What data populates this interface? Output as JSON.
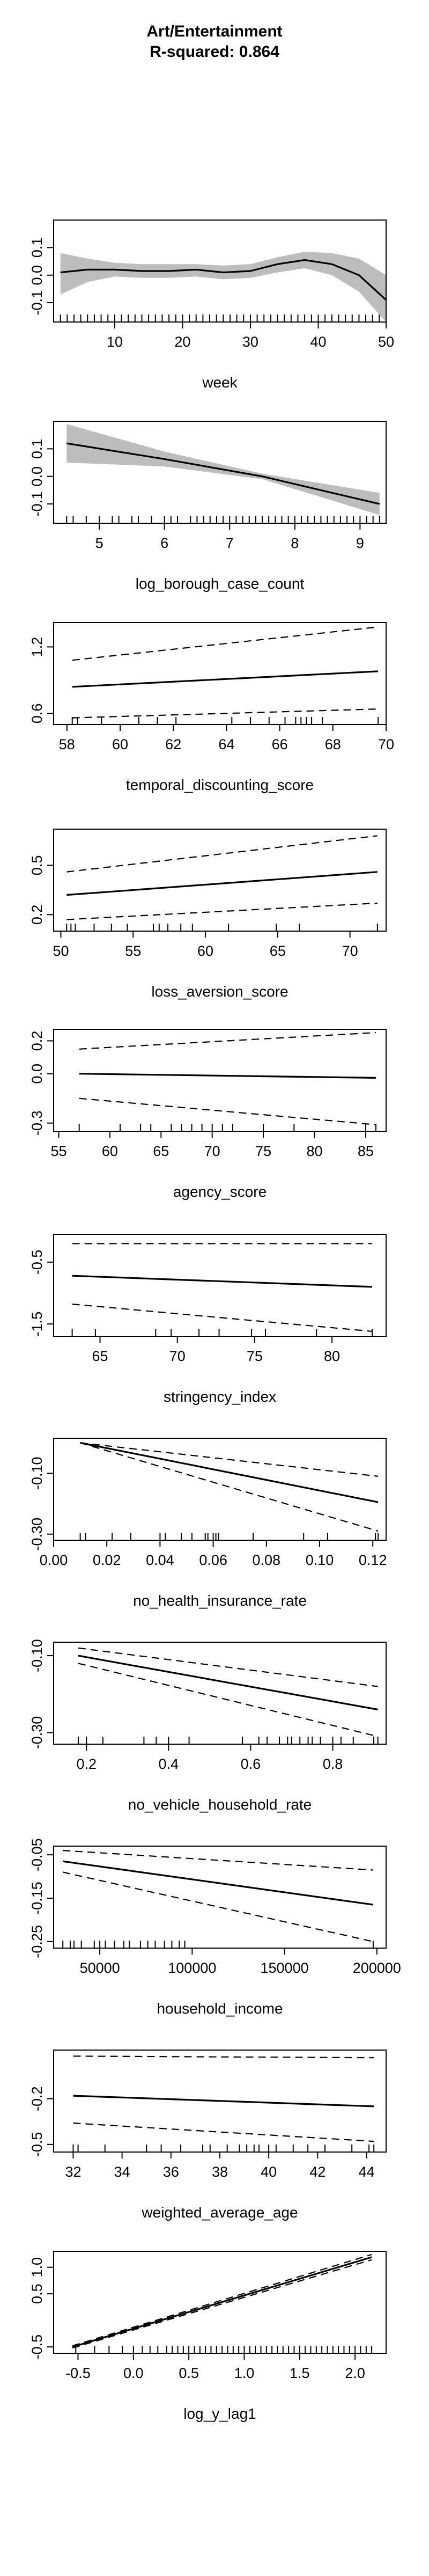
{
  "figure": {
    "title": "Art/Entertainment",
    "subtitle": "R-squared: 0.864"
  },
  "chart_data": [
    {
      "type": "line",
      "style": "smooth_band",
      "xlabel": "week",
      "xlim": [
        1,
        50
      ],
      "ylim": [
        -0.17,
        0.2
      ],
      "xticks": [
        10,
        20,
        30,
        40,
        50
      ],
      "xtick_labels": [
        "10",
        "20",
        "30",
        "40",
        "50"
      ],
      "yticks": [
        -0.1,
        0.0,
        0.1
      ],
      "ytick_labels": [
        "-0.1",
        "0.0",
        "0.1"
      ],
      "x": [
        2,
        6,
        10,
        14,
        18,
        22,
        26,
        30,
        34,
        38,
        42,
        46,
        50
      ],
      "fit": [
        0.01,
        0.02,
        0.02,
        0.015,
        0.015,
        0.02,
        0.01,
        0.015,
        0.04,
        0.055,
        0.04,
        0.0,
        -0.09
      ],
      "upper": [
        0.08,
        0.06,
        0.045,
        0.04,
        0.04,
        0.04,
        0.035,
        0.04,
        0.065,
        0.085,
        0.08,
        0.06,
        0.0
      ],
      "lower": [
        -0.07,
        -0.025,
        -0.005,
        -0.01,
        -0.01,
        -0.005,
        -0.015,
        -0.01,
        0.01,
        0.025,
        0.0,
        -0.06,
        -0.17
      ],
      "rug": [
        2,
        3,
        4,
        5,
        6,
        7,
        8,
        9,
        10,
        11,
        12,
        13,
        14,
        15,
        16,
        17,
        18,
        19,
        20,
        21,
        22,
        23,
        24,
        25,
        26,
        27,
        28,
        29,
        30,
        31,
        32,
        33,
        34,
        35,
        36,
        37,
        38,
        39,
        40,
        41,
        42,
        43,
        44,
        45,
        46,
        47,
        48,
        49,
        50
      ]
    },
    {
      "type": "line",
      "style": "smooth_band",
      "xlabel": "log_borough_case_count",
      "xlim": [
        4.3,
        9.4
      ],
      "ylim": [
        -0.17,
        0.2
      ],
      "xticks": [
        5,
        6,
        7,
        8,
        9
      ],
      "xtick_labels": [
        "5",
        "6",
        "7",
        "8",
        "9"
      ],
      "yticks": [
        -0.1,
        0.0,
        0.1
      ],
      "ytick_labels": [
        "-0.1",
        "0.0",
        "0.1"
      ],
      "x": [
        4.5,
        6.0,
        7.5,
        9.3
      ],
      "fit": [
        0.12,
        0.063,
        0.0,
        -0.1
      ],
      "upper": [
        0.19,
        0.09,
        0.01,
        -0.06
      ],
      "lower": [
        0.05,
        0.036,
        -0.01,
        -0.14
      ],
      "rug": [
        4.5,
        4.6,
        4.8,
        5.0,
        5.2,
        5.3,
        5.5,
        5.6,
        5.8,
        6.0,
        6.1,
        6.2,
        6.4,
        6.5,
        6.6,
        6.7,
        6.8,
        6.9,
        7.0,
        7.1,
        7.2,
        7.3,
        7.4,
        7.5,
        7.6,
        7.7,
        7.8,
        7.9,
        8.0,
        8.1,
        8.2,
        8.3,
        8.4,
        8.5,
        8.6,
        8.7,
        8.8,
        8.9,
        9.0,
        9.1,
        9.2,
        9.3
      ]
    },
    {
      "type": "line",
      "style": "dashed_ci",
      "xlabel": "temporal_discounting_score",
      "xlim": [
        57.5,
        70
      ],
      "ylim": [
        0.5,
        1.42
      ],
      "xticks": [
        58,
        60,
        62,
        64,
        66,
        68,
        70
      ],
      "xtick_labels": [
        "58",
        "60",
        "62",
        "64",
        "66",
        "68",
        "70"
      ],
      "yticks": [
        0.6,
        1.2
      ],
      "ytick_labels": [
        "0.6",
        "1.2"
      ],
      "x": [
        58.2,
        69.7
      ],
      "fit": [
        0.84,
        0.98
      ],
      "upper": [
        1.08,
        1.38
      ],
      "lower": [
        0.56,
        0.64
      ],
      "rug": [
        58.2,
        58.4,
        59.3,
        60.7,
        61.4,
        62.1,
        64.2,
        64.9,
        65.6,
        66.2,
        66.6,
        66.8,
        67.0,
        67.2,
        67.6,
        69.7
      ]
    },
    {
      "type": "line",
      "style": "dashed_ci",
      "xlabel": "loss_aversion_score",
      "xlim": [
        49.5,
        72.5
      ],
      "ylim": [
        0.1,
        0.72
      ],
      "xticks": [
        50,
        55,
        60,
        65,
        70
      ],
      "xtick_labels": [
        "50",
        "55",
        "60",
        "65",
        "70"
      ],
      "yticks": [
        0.2,
        0.5
      ],
      "ytick_labels": [
        "0.2",
        "0.5"
      ],
      "x": [
        50.4,
        71.9
      ],
      "fit": [
        0.32,
        0.46
      ],
      "upper": [
        0.46,
        0.68
      ],
      "lower": [
        0.17,
        0.27
      ],
      "rug": [
        50.4,
        50.7,
        51.0,
        52.3,
        53.5,
        54.6,
        56.4,
        56.8,
        57.4,
        58.3,
        59.1,
        61.6,
        64.9,
        66.5,
        71.9
      ]
    },
    {
      "type": "line",
      "style": "dashed_ci",
      "xlabel": "agency_score",
      "xlim": [
        54.5,
        87
      ],
      "ylim": [
        -0.35,
        0.27
      ],
      "xticks": [
        55,
        60,
        65,
        70,
        75,
        80,
        85
      ],
      "xtick_labels": [
        "55",
        "60",
        "65",
        "70",
        "75",
        "80",
        "85"
      ],
      "yticks": [
        -0.3,
        0.0,
        0.2
      ],
      "ytick_labels": [
        "-0.3",
        "0.0",
        "0.2"
      ],
      "x": [
        57,
        86
      ],
      "fit": [
        0.0,
        -0.025
      ],
      "upper": [
        0.15,
        0.25
      ],
      "lower": [
        -0.15,
        -0.31
      ],
      "rug": [
        57,
        61,
        63,
        64,
        66,
        67,
        68,
        69,
        70,
        71,
        72,
        75,
        78,
        85,
        86
      ]
    },
    {
      "type": "line",
      "style": "dashed_ci",
      "xlabel": "stringency_index",
      "xlim": [
        62,
        83.5
      ],
      "ylim": [
        -1.7,
        -0.05
      ],
      "xticks": [
        65,
        70,
        75,
        80
      ],
      "xtick_labels": [
        "65",
        "70",
        "75",
        "80"
      ],
      "yticks": [
        -1.5,
        -0.5
      ],
      "ytick_labels": [
        "-1.5",
        "-0.5"
      ],
      "x": [
        63.2,
        82.6
      ],
      "fit": [
        -0.72,
        -0.9
      ],
      "upper": [
        -0.2,
        -0.2
      ],
      "lower": [
        -1.18,
        -1.62
      ],
      "rug": [
        63.2,
        64.7,
        68.6,
        69.6,
        71.4,
        72.7,
        74.8,
        75.7,
        79.0,
        82.6
      ]
    },
    {
      "type": "line",
      "style": "dashed_ci",
      "xlabel": "no_health_insurance_rate",
      "xlim": [
        0.0,
        0.125
      ],
      "ylim": [
        -0.32,
        0.015
      ],
      "xticks": [
        0.0,
        0.02,
        0.04,
        0.06,
        0.08,
        0.1,
        0.12
      ],
      "xtick_labels": [
        "0.00",
        "0.02",
        "0.04",
        "0.06",
        "0.08",
        "0.10",
        "0.12"
      ],
      "yticks": [
        -0.3,
        -0.1
      ],
      "ytick_labels": [
        "-0.30",
        "-0.10"
      ],
      "x": [
        0.01,
        0.122
      ],
      "fit": [
        0.0,
        -0.195
      ],
      "upper": [
        0.0,
        -0.11
      ],
      "lower": [
        0.0,
        -0.29
      ],
      "rug": [
        0.01,
        0.012,
        0.022,
        0.029,
        0.04,
        0.042,
        0.048,
        0.052,
        0.057,
        0.058,
        0.06,
        0.061,
        0.062,
        0.075,
        0.094,
        0.103,
        0.121,
        0.122
      ]
    },
    {
      "type": "line",
      "style": "dashed_ci",
      "xlabel": "no_vehicle_household_rate",
      "xlim": [
        0.12,
        0.93
      ],
      "ylim": [
        -0.33,
        -0.065
      ],
      "xticks": [
        0.2,
        0.4,
        0.6,
        0.8
      ],
      "xtick_labels": [
        "0.2",
        "0.4",
        "0.6",
        "0.8"
      ],
      "yticks": [
        -0.3,
        -0.1
      ],
      "ytick_labels": [
        "-0.30",
        "-0.10"
      ],
      "x": [
        0.18,
        0.91
      ],
      "fit": [
        -0.1,
        -0.24
      ],
      "upper": [
        -0.08,
        -0.18
      ],
      "lower": [
        -0.12,
        -0.31
      ],
      "rug": [
        0.18,
        0.2,
        0.24,
        0.34,
        0.37,
        0.4,
        0.45,
        0.58,
        0.62,
        0.64,
        0.67,
        0.69,
        0.7,
        0.72,
        0.74,
        0.75,
        0.77,
        0.8,
        0.82,
        0.85,
        0.9,
        0.91
      ]
    },
    {
      "type": "line",
      "style": "dashed_ci",
      "xlabel": "household_income",
      "xlim": [
        25000,
        205000
      ],
      "ylim": [
        -0.265,
        -0.03
      ],
      "xticks": [
        50000,
        100000,
        150000,
        200000
      ],
      "xtick_labels": [
        "50000",
        "100000",
        "150000",
        "200000"
      ],
      "yticks": [
        -0.25,
        -0.15,
        -0.05
      ],
      "ytick_labels": [
        "-0.25",
        "-0.15",
        "-0.05"
      ],
      "x": [
        30000,
        198000
      ],
      "fit": [
        -0.065,
        -0.165
      ],
      "upper": [
        -0.04,
        -0.085
      ],
      "lower": [
        -0.09,
        -0.25
      ],
      "rug": [
        30000,
        34000,
        36000,
        40000,
        47000,
        50000,
        53000,
        58000,
        63000,
        66000,
        72000,
        76000,
        80000,
        85000,
        89000,
        93000,
        96000,
        198000
      ]
    },
    {
      "type": "line",
      "style": "dashed_ci",
      "xlabel": "weighted_average_age",
      "xlim": [
        31.2,
        44.8
      ],
      "ylim": [
        -0.55,
        0.12
      ],
      "xticks": [
        32,
        34,
        36,
        38,
        40,
        42,
        44
      ],
      "xtick_labels": [
        "32",
        "34",
        "36",
        "38",
        "40",
        "42",
        "44"
      ],
      "yticks": [
        -0.5,
        -0.2
      ],
      "ytick_labels": [
        "-0.5",
        "-0.2"
      ],
      "x": [
        32,
        44.3
      ],
      "fit": [
        -0.18,
        -0.25
      ],
      "upper": [
        0.08,
        0.07
      ],
      "lower": [
        -0.36,
        -0.48
      ],
      "rug": [
        32.0,
        32.2,
        33.3,
        35.0,
        35.6,
        36.4,
        37.3,
        37.6,
        38.3,
        38.8,
        39.1,
        39.4,
        39.6,
        40.0,
        40.3,
        41.0,
        41.6,
        42.3,
        43.4,
        44.1,
        44.3
      ]
    },
    {
      "type": "line",
      "style": "dashed_ci",
      "xlabel": "log_y_lag1",
      "xlim": [
        -0.72,
        2.28
      ],
      "ylim": [
        -0.62,
        1.3
      ],
      "xticks": [
        -0.5,
        0.0,
        0.5,
        1.0,
        1.5,
        2.0
      ],
      "xtick_labels": [
        "-0.5",
        "0.0",
        "0.5",
        "1.0",
        "1.5",
        "2.0"
      ],
      "yticks": [
        -0.5,
        0.5,
        1.0
      ],
      "ytick_labels": [
        "-0.5",
        "0.5",
        "1.0"
      ],
      "x": [
        -0.55,
        2.15
      ],
      "fit": [
        -0.5,
        1.19
      ],
      "upper": [
        -0.48,
        1.24
      ],
      "lower": [
        -0.52,
        1.14
      ],
      "rug": [
        -0.52,
        -0.35,
        -0.22,
        -0.1,
        0.0,
        0.08,
        0.15,
        0.22,
        0.3,
        0.35,
        0.4,
        0.45,
        0.5,
        0.55,
        0.6,
        0.65,
        0.7,
        0.75,
        0.8,
        0.85,
        0.9,
        0.95,
        1.0,
        1.05,
        1.1,
        1.15,
        1.2,
        1.25,
        1.3,
        1.35,
        1.4,
        1.45,
        1.5,
        1.55,
        1.6,
        1.65,
        1.7,
        1.75,
        1.8,
        1.85,
        1.9,
        1.95,
        2.0,
        2.05,
        2.1,
        2.15
      ]
    }
  ]
}
